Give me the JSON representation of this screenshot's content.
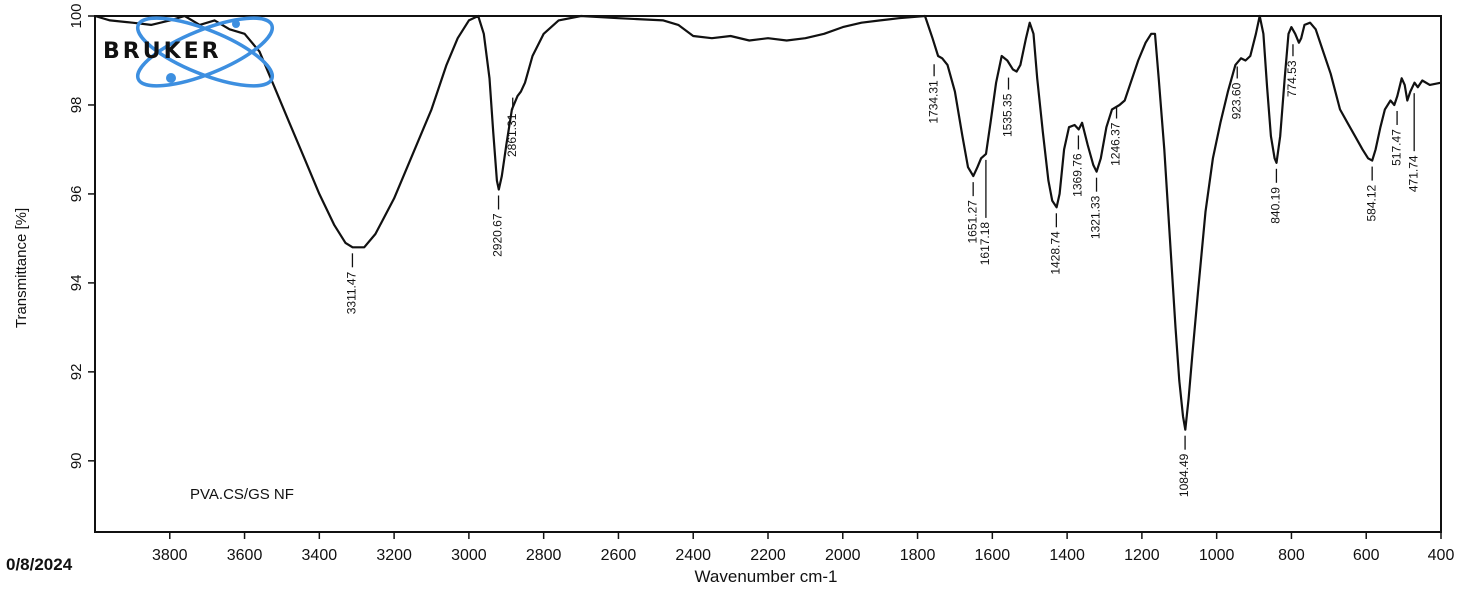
{
  "logo": {
    "text": "BRUKER",
    "ring_color": "#3d8fe0",
    "text_color": "#111111"
  },
  "date_text": "0/8/2024",
  "chart_data": {
    "type": "line",
    "sample_label": "PVA.CS/GS NF",
    "xlabel": "Wavenumber cm-1",
    "ylabel": "Transmittance [%]",
    "xlim": [
      4000,
      400
    ],
    "ylim": [
      88.4,
      100
    ],
    "x_inverted": true,
    "x_ticks": [
      3800,
      3600,
      3400,
      3200,
      3000,
      2800,
      2600,
      2400,
      2200,
      2000,
      1800,
      1600,
      1400,
      1200,
      1000,
      800,
      600,
      400
    ],
    "y_ticks": [
      90,
      92,
      94,
      96,
      98,
      100
    ],
    "grid": false,
    "line_color": "#111111",
    "series": [
      {
        "points": [
          [
            4000,
            100
          ],
          [
            3960,
            99.9
          ],
          [
            3900,
            99.85
          ],
          [
            3850,
            99.8
          ],
          [
            3800,
            99.9
          ],
          [
            3760,
            100
          ],
          [
            3720,
            99.8
          ],
          [
            3680,
            99.9
          ],
          [
            3640,
            99.7
          ],
          [
            3600,
            99.6
          ],
          [
            3560,
            99.2
          ],
          [
            3520,
            98.4
          ],
          [
            3480,
            97.6
          ],
          [
            3440,
            96.8
          ],
          [
            3400,
            96.0
          ],
          [
            3360,
            95.3
          ],
          [
            3330,
            94.9
          ],
          [
            3311,
            94.8
          ],
          [
            3280,
            94.8
          ],
          [
            3250,
            95.1
          ],
          [
            3200,
            95.9
          ],
          [
            3150,
            96.9
          ],
          [
            3100,
            97.9
          ],
          [
            3060,
            98.9
          ],
          [
            3030,
            99.5
          ],
          [
            3000,
            99.9
          ],
          [
            2975,
            100
          ],
          [
            2960,
            99.6
          ],
          [
            2945,
            98.6
          ],
          [
            2935,
            97.4
          ],
          [
            2925,
            96.3
          ],
          [
            2920,
            96.1
          ],
          [
            2912,
            96.4
          ],
          [
            2900,
            97.1
          ],
          [
            2885,
            97.9
          ],
          [
            2870,
            98.2
          ],
          [
            2861,
            98.3
          ],
          [
            2850,
            98.5
          ],
          [
            2830,
            99.1
          ],
          [
            2800,
            99.6
          ],
          [
            2760,
            99.9
          ],
          [
            2700,
            100
          ],
          [
            2600,
            99.95
          ],
          [
            2480,
            99.9
          ],
          [
            2440,
            99.8
          ],
          [
            2400,
            99.55
          ],
          [
            2350,
            99.5
          ],
          [
            2300,
            99.55
          ],
          [
            2250,
            99.45
          ],
          [
            2200,
            99.5
          ],
          [
            2150,
            99.45
          ],
          [
            2100,
            99.5
          ],
          [
            2050,
            99.6
          ],
          [
            2000,
            99.75
          ],
          [
            1950,
            99.85
          ],
          [
            1900,
            99.9
          ],
          [
            1850,
            99.95
          ],
          [
            1780,
            100
          ],
          [
            1760,
            99.5
          ],
          [
            1745,
            99.1
          ],
          [
            1734,
            99.05
          ],
          [
            1720,
            98.9
          ],
          [
            1700,
            98.3
          ],
          [
            1680,
            97.3
          ],
          [
            1665,
            96.6
          ],
          [
            1651,
            96.4
          ],
          [
            1640,
            96.6
          ],
          [
            1630,
            96.8
          ],
          [
            1617,
            96.9
          ],
          [
            1605,
            97.6
          ],
          [
            1590,
            98.5
          ],
          [
            1575,
            99.1
          ],
          [
            1560,
            99.0
          ],
          [
            1545,
            98.8
          ],
          [
            1535,
            98.75
          ],
          [
            1525,
            98.9
          ],
          [
            1510,
            99.5
          ],
          [
            1500,
            99.85
          ],
          [
            1490,
            99.6
          ],
          [
            1480,
            98.6
          ],
          [
            1465,
            97.4
          ],
          [
            1450,
            96.3
          ],
          [
            1440,
            95.85
          ],
          [
            1428,
            95.7
          ],
          [
            1420,
            96.0
          ],
          [
            1408,
            97.0
          ],
          [
            1395,
            97.5
          ],
          [
            1380,
            97.55
          ],
          [
            1369,
            97.45
          ],
          [
            1360,
            97.6
          ],
          [
            1345,
            97.1
          ],
          [
            1330,
            96.65
          ],
          [
            1321,
            96.5
          ],
          [
            1310,
            96.8
          ],
          [
            1295,
            97.5
          ],
          [
            1280,
            97.9
          ],
          [
            1260,
            98.0
          ],
          [
            1246,
            98.1
          ],
          [
            1230,
            98.5
          ],
          [
            1210,
            99.0
          ],
          [
            1190,
            99.4
          ],
          [
            1175,
            99.6
          ],
          [
            1165,
            99.6
          ],
          [
            1155,
            98.6
          ],
          [
            1140,
            97.0
          ],
          [
            1125,
            95.0
          ],
          [
            1110,
            93.0
          ],
          [
            1100,
            91.8
          ],
          [
            1090,
            91.0
          ],
          [
            1084,
            90.7
          ],
          [
            1075,
            91.4
          ],
          [
            1065,
            92.4
          ],
          [
            1050,
            93.8
          ],
          [
            1030,
            95.6
          ],
          [
            1010,
            96.8
          ],
          [
            990,
            97.6
          ],
          [
            970,
            98.3
          ],
          [
            950,
            98.9
          ],
          [
            935,
            99.05
          ],
          [
            923,
            99.0
          ],
          [
            910,
            99.1
          ],
          [
            895,
            99.6
          ],
          [
            885,
            100
          ],
          [
            875,
            99.6
          ],
          [
            865,
            98.4
          ],
          [
            855,
            97.3
          ],
          [
            845,
            96.8
          ],
          [
            840,
            96.7
          ],
          [
            830,
            97.3
          ],
          [
            818,
            98.6
          ],
          [
            808,
            99.6
          ],
          [
            800,
            99.75
          ],
          [
            790,
            99.6
          ],
          [
            780,
            99.4
          ],
          [
            774,
            99.5
          ],
          [
            765,
            99.8
          ],
          [
            750,
            99.85
          ],
          [
            735,
            99.7
          ],
          [
            715,
            99.2
          ],
          [
            695,
            98.7
          ],
          [
            670,
            97.9
          ],
          [
            650,
            97.6
          ],
          [
            630,
            97.3
          ],
          [
            610,
            97.0
          ],
          [
            595,
            96.8
          ],
          [
            584,
            96.75
          ],
          [
            575,
            97.0
          ],
          [
            562,
            97.5
          ],
          [
            550,
            97.9
          ],
          [
            535,
            98.1
          ],
          [
            525,
            98.0
          ],
          [
            517,
            98.2
          ],
          [
            505,
            98.6
          ],
          [
            497,
            98.45
          ],
          [
            490,
            98.1
          ],
          [
            482,
            98.3
          ],
          [
            471,
            98.5
          ],
          [
            462,
            98.4
          ],
          [
            450,
            98.55
          ],
          [
            430,
            98.45
          ],
          [
            400,
            98.5
          ]
        ]
      }
    ],
    "peaks": [
      {
        "label": "3311.47",
        "x": 3311.47,
        "y": 94.8,
        "dir": "down"
      },
      {
        "label": "2920.67",
        "x": 2920.67,
        "y": 96.1,
        "dir": "down"
      },
      {
        "label": "2861.31",
        "x": 2861.31,
        "y": 98.3,
        "dir": "up"
      },
      {
        "label": "1734.31",
        "x": 1734.31,
        "y": 99.05,
        "dir": "up"
      },
      {
        "label": "1651.27",
        "x": 1651.27,
        "y": 96.4,
        "dir": "down"
      },
      {
        "label": "1617.18",
        "x": 1617.18,
        "y": 96.9,
        "dir": "down",
        "long": true
      },
      {
        "label": "1535.35",
        "x": 1535.35,
        "y": 98.75,
        "dir": "up"
      },
      {
        "label": "1428.74",
        "x": 1428.74,
        "y": 95.7,
        "dir": "down"
      },
      {
        "label": "1369.76",
        "x": 1369.76,
        "y": 97.45,
        "dir": "down"
      },
      {
        "label": "1321.33",
        "x": 1321.33,
        "y": 96.5,
        "dir": "down"
      },
      {
        "label": "1246.37",
        "x": 1246.37,
        "y": 98.1,
        "dir": "up"
      },
      {
        "label": "1084.49",
        "x": 1084.49,
        "y": 90.7,
        "dir": "down"
      },
      {
        "label": "923.60",
        "x": 923.6,
        "y": 99.0,
        "dir": "up"
      },
      {
        "label": "840.19",
        "x": 840.19,
        "y": 96.7,
        "dir": "down"
      },
      {
        "label": "774.53",
        "x": 774.53,
        "y": 99.5,
        "dir": "up"
      },
      {
        "label": "584.12",
        "x": 584.12,
        "y": 96.75,
        "dir": "down"
      },
      {
        "label": "517.47",
        "x": 517.47,
        "y": 98.0,
        "dir": "down"
      },
      {
        "label": "471.74",
        "x": 471.74,
        "y": 98.4,
        "dir": "down",
        "long": true
      }
    ]
  }
}
